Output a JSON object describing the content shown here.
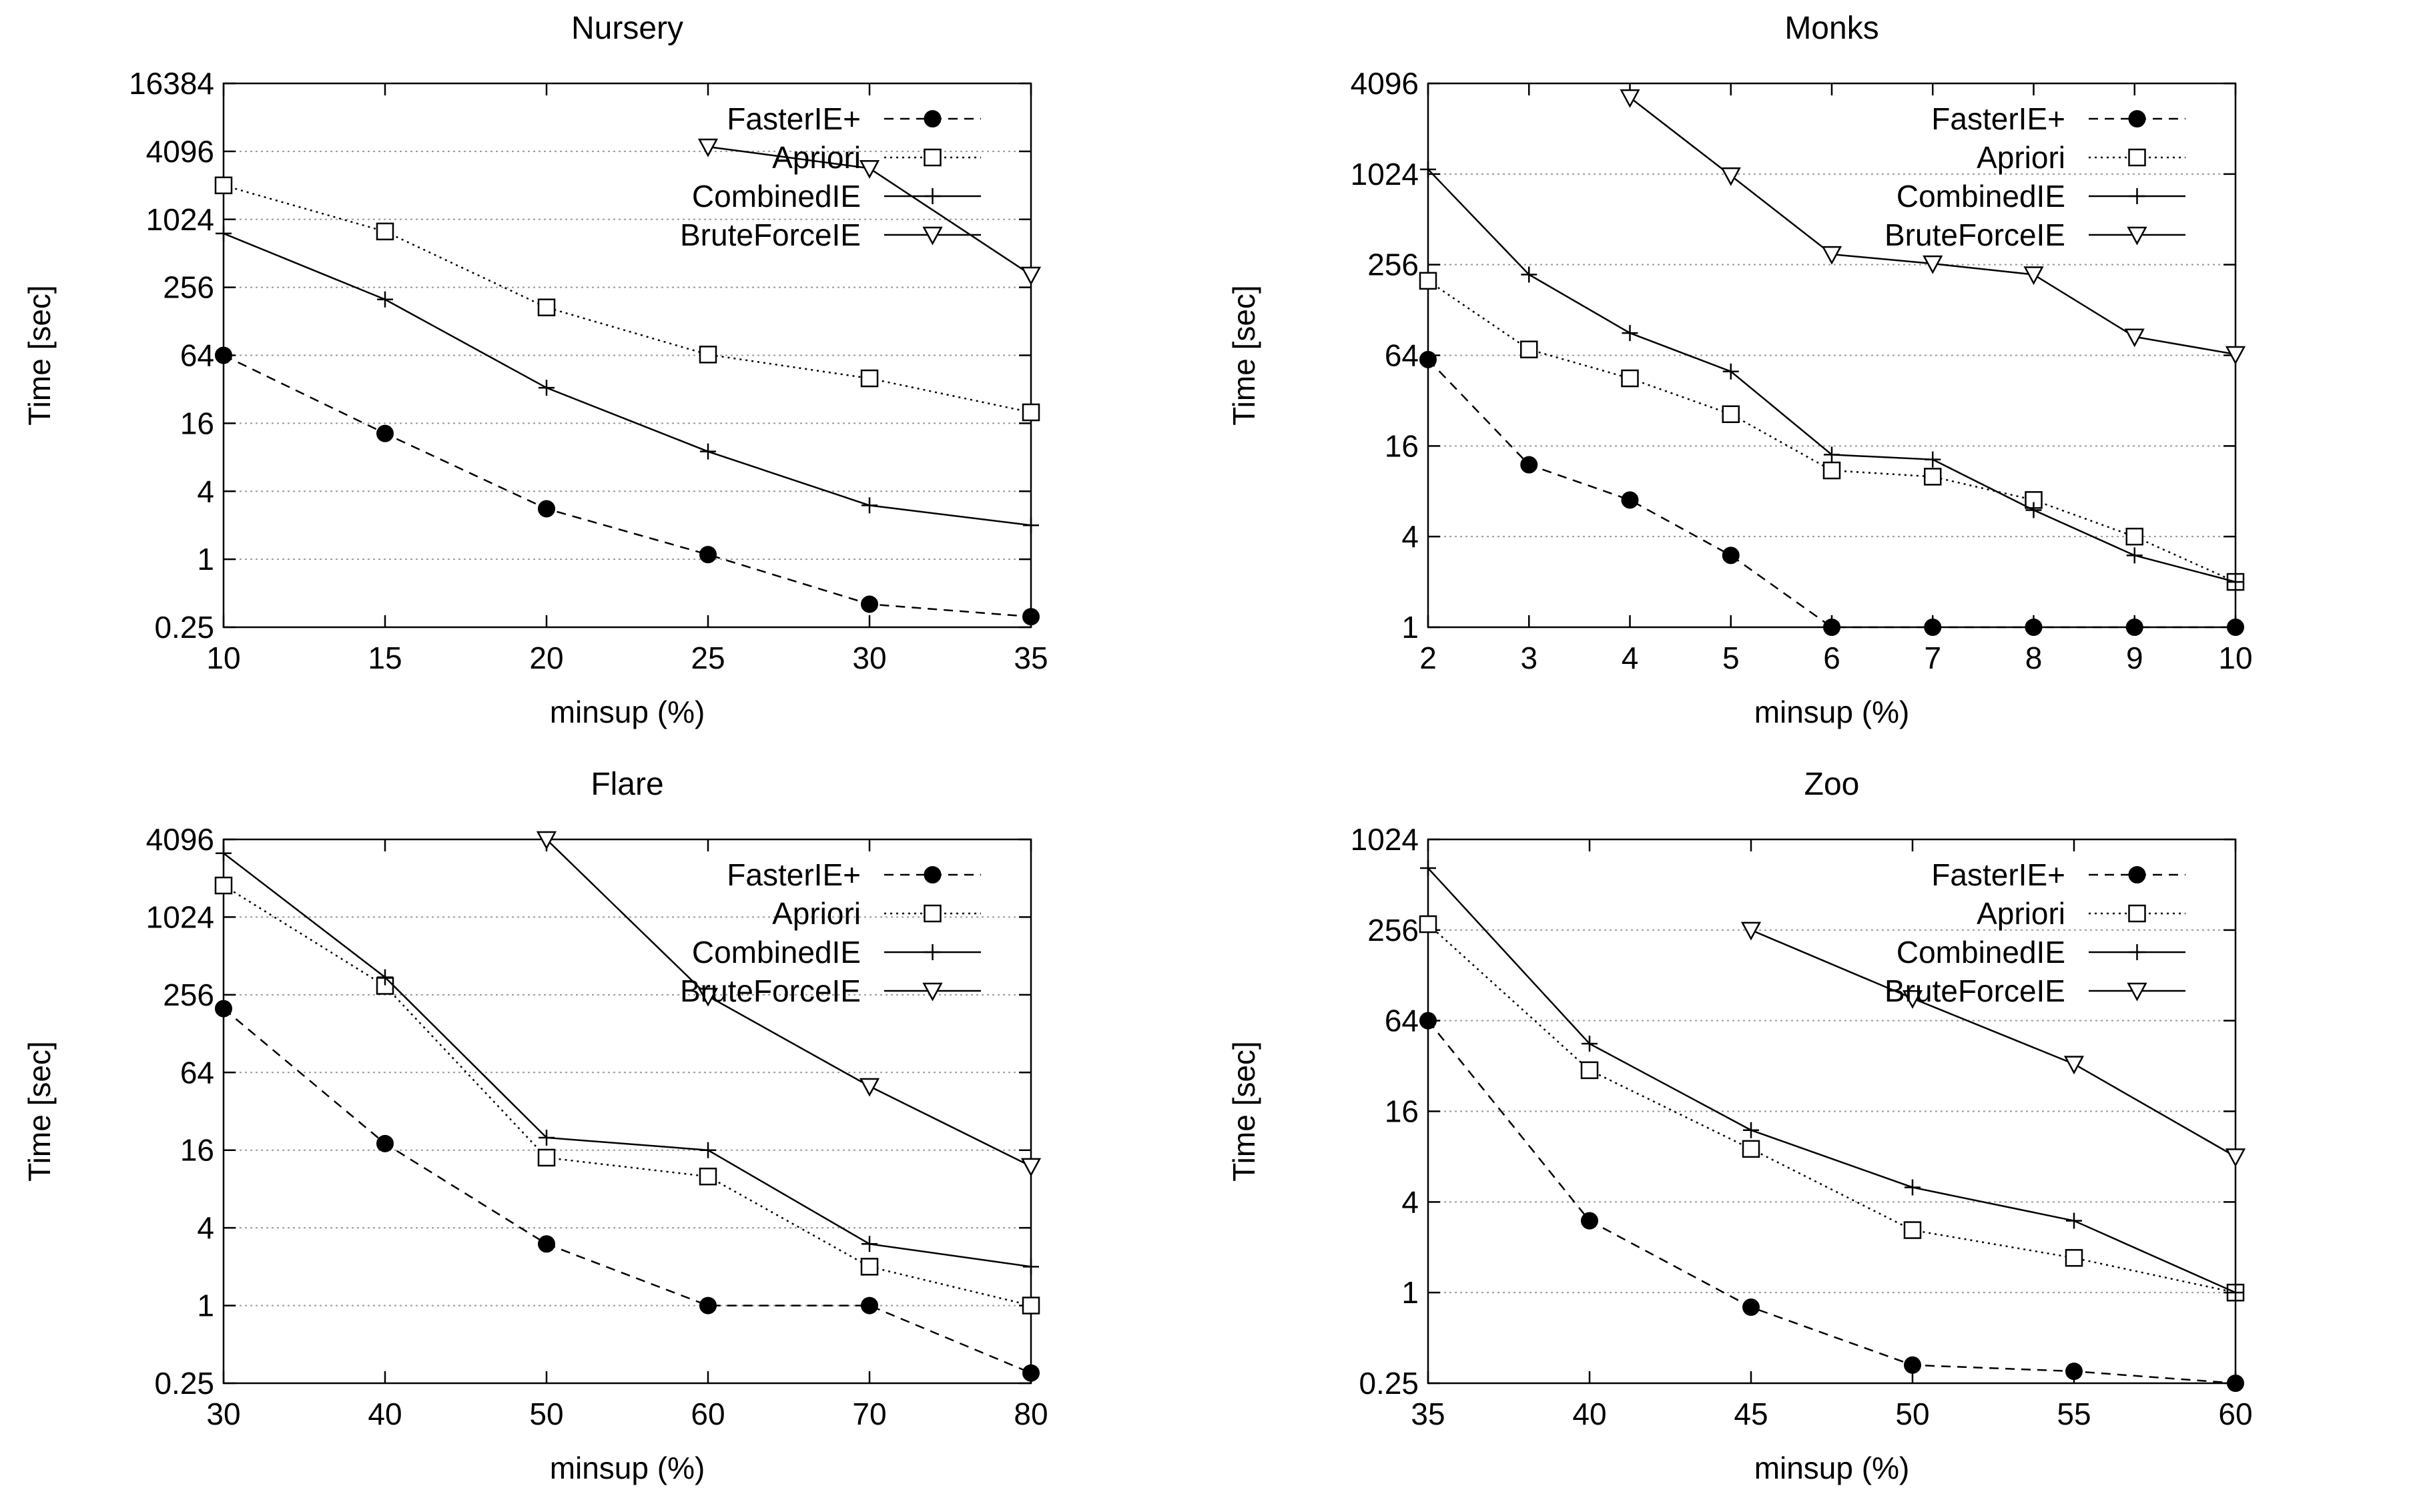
{
  "chart_data": [
    {
      "type": "line",
      "title": "Nursery",
      "xlabel": "minsup (%)",
      "ylabel": "Time [sec]",
      "yscale": "log2",
      "x": [
        10,
        15,
        20,
        25,
        30,
        35
      ],
      "xticks": [
        "10",
        "15",
        "20",
        "25",
        "30",
        "35"
      ],
      "xlim": [
        10,
        35
      ],
      "yticks": [
        0.25,
        1,
        4,
        16,
        64,
        256,
        1024,
        4096,
        16384
      ],
      "ytick_labels": [
        "0.25",
        "1",
        "4",
        "16",
        "64",
        "256",
        "1024",
        "4096",
        "16384"
      ],
      "ylim": [
        0.25,
        16384
      ],
      "grid": "horizontal",
      "legend": "top-right",
      "series": [
        {
          "name": "FasterIE+",
          "style": "dashed",
          "marker": "filled-circle",
          "x": [
            10,
            15,
            20,
            25,
            30,
            35
          ],
          "values": [
            64,
            13,
            2.8,
            1.1,
            0.4,
            0.31
          ]
        },
        {
          "name": "Apriori",
          "style": "dotted",
          "marker": "square",
          "x": [
            10,
            15,
            20,
            25,
            30,
            35
          ],
          "values": [
            2048,
            800,
            170,
            65,
            40,
            20
          ]
        },
        {
          "name": "CombinedIE",
          "style": "solid",
          "marker": "plus",
          "x": [
            10,
            15,
            20,
            25,
            30,
            35
          ],
          "values": [
            768,
            200,
            33,
            9,
            3,
            2
          ]
        },
        {
          "name": "BruteForceIE",
          "style": "solid",
          "marker": "triangle-down",
          "x": [
            25,
            30,
            35
          ],
          "values": [
            4500,
            2900,
            330
          ]
        }
      ]
    },
    {
      "type": "line",
      "title": "Monks",
      "xlabel": "minsup (%)",
      "ylabel": "Time [sec]",
      "yscale": "log2",
      "x": [
        2,
        3,
        4,
        5,
        6,
        7,
        8,
        9,
        10
      ],
      "xticks": [
        "2",
        "3",
        "4",
        "5",
        "6",
        "7",
        "8",
        "9",
        "10"
      ],
      "xlim": [
        2,
        10
      ],
      "yticks": [
        1,
        4,
        16,
        64,
        256,
        1024,
        4096
      ],
      "ytick_labels": [
        "1",
        "4",
        "16",
        "64",
        "256",
        "1024",
        "4096"
      ],
      "ylim": [
        1,
        4096
      ],
      "grid": "horizontal",
      "legend": "top-right",
      "series": [
        {
          "name": "FasterIE+",
          "style": "dashed",
          "marker": "filled-circle",
          "x": [
            2,
            3,
            4,
            5,
            6,
            7,
            8,
            9,
            10
          ],
          "values": [
            60,
            12,
            7,
            3,
            1,
            1,
            1,
            1,
            1
          ]
        },
        {
          "name": "Apriori",
          "style": "dotted",
          "marker": "square",
          "x": [
            2,
            3,
            4,
            5,
            6,
            7,
            8,
            9,
            10
          ],
          "values": [
            200,
            70,
            45,
            26,
            11,
            10,
            7,
            4,
            2
          ]
        },
        {
          "name": "CombinedIE",
          "style": "solid",
          "marker": "plus",
          "x": [
            2,
            3,
            4,
            5,
            6,
            7,
            8,
            9,
            10
          ],
          "values": [
            1100,
            220,
            90,
            50,
            14,
            13,
            6,
            3,
            2
          ]
        },
        {
          "name": "BruteForceIE",
          "style": "solid",
          "marker": "triangle-down",
          "x": [
            4,
            5,
            6,
            7,
            8,
            9,
            10
          ],
          "values": [
            3300,
            1000,
            300,
            260,
            220,
            85,
            65
          ]
        }
      ]
    },
    {
      "type": "line",
      "title": "Flare",
      "xlabel": "minsup (%)",
      "ylabel": "Time [sec]",
      "yscale": "log2",
      "x": [
        30,
        40,
        50,
        60,
        70,
        80
      ],
      "xticks": [
        "30",
        "40",
        "50",
        "60",
        "70",
        "80"
      ],
      "xlim": [
        30,
        80
      ],
      "yticks": [
        0.25,
        1,
        4,
        16,
        64,
        256,
        1024,
        4096
      ],
      "ytick_labels": [
        "0.25",
        "1",
        "4",
        "16",
        "64",
        "256",
        "1024",
        "4096"
      ],
      "ylim": [
        0.25,
        4096
      ],
      "grid": "horizontal",
      "legend": "top-right",
      "series": [
        {
          "name": "FasterIE+",
          "style": "dashed",
          "marker": "filled-circle",
          "x": [
            30,
            40,
            50,
            60,
            70,
            80
          ],
          "values": [
            200,
            18,
            3,
            1,
            1,
            0.3
          ]
        },
        {
          "name": "Apriori",
          "style": "dotted",
          "marker": "square",
          "x": [
            30,
            40,
            50,
            60,
            70,
            80
          ],
          "values": [
            1800,
            300,
            14,
            10,
            2,
            1
          ]
        },
        {
          "name": "CombinedIE",
          "style": "solid",
          "marker": "plus",
          "x": [
            30,
            40,
            50,
            60,
            70,
            80
          ],
          "values": [
            3200,
            350,
            20,
            16,
            3,
            2
          ]
        },
        {
          "name": "BruteForceIE",
          "style": "solid",
          "marker": "triangle-down",
          "x": [
            50,
            60,
            70,
            80
          ],
          "values": [
            4096,
            250,
            50,
            12
          ]
        }
      ]
    },
    {
      "type": "line",
      "title": "Zoo",
      "xlabel": "minsup (%)",
      "ylabel": "Time [sec]",
      "yscale": "log2",
      "x": [
        35,
        40,
        45,
        50,
        55,
        60
      ],
      "xticks": [
        "35",
        "40",
        "45",
        "50",
        "55",
        "60"
      ],
      "xlim": [
        35,
        60
      ],
      "yticks": [
        0.25,
        1,
        4,
        16,
        64,
        256,
        1024
      ],
      "ytick_labels": [
        "0.25",
        "1",
        "4",
        "16",
        "64",
        "256",
        "1024"
      ],
      "ylim": [
        0.25,
        1024
      ],
      "grid": "horizontal",
      "legend": "top-right",
      "series": [
        {
          "name": "FasterIE+",
          "style": "dashed",
          "marker": "filled-circle",
          "x": [
            35,
            40,
            45,
            50,
            55,
            60
          ],
          "values": [
            64,
            3,
            0.8,
            0.33,
            0.3,
            0.25
          ]
        },
        {
          "name": "Apriori",
          "style": "dotted",
          "marker": "square",
          "x": [
            35,
            40,
            45,
            50,
            55,
            60
          ],
          "values": [
            280,
            30,
            9,
            2.6,
            1.7,
            1
          ]
        },
        {
          "name": "CombinedIE",
          "style": "solid",
          "marker": "plus",
          "x": [
            35,
            40,
            45,
            50,
            55,
            60
          ],
          "values": [
            660,
            45,
            12,
            5,
            3,
            1
          ]
        },
        {
          "name": "BruteForceIE",
          "style": "solid",
          "marker": "triangle-down",
          "x": [
            45,
            50,
            55,
            60
          ],
          "values": [
            256,
            90,
            33,
            8
          ]
        }
      ]
    }
  ]
}
